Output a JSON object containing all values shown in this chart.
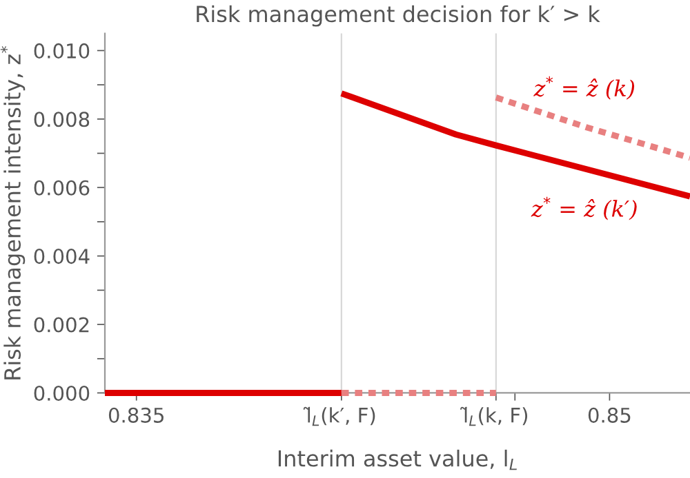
{
  "chart_data": {
    "type": "line",
    "title": "Risk management decision for k′ > k",
    "xlabel": "Interim asset value, l$_{L}$",
    "ylabel": "Risk management intensity, z$^{*}$",
    "xlim": [
      0.834,
      0.85255
    ],
    "ylim": [
      0,
      0.0105
    ],
    "xticks": [
      0.835,
      {
        "value": 0.8415,
        "label": "l̃$_{L}$(k′, F)"
      },
      {
        "value": 0.8464,
        "label": "l̃$_{L}$(k, F)"
      },
      {
        "value": 0.847,
        "label": null
      },
      0.85
    ],
    "yticks": [
      {
        "value": 0,
        "label": "0.000"
      },
      {
        "value": 0.001,
        "label": null
      },
      {
        "value": 0.002,
        "label": "0.002"
      },
      {
        "value": 0.003,
        "label": null
      },
      {
        "value": 0.004,
        "label": "0.004"
      },
      {
        "value": 0.005,
        "label": null
      },
      {
        "value": 0.006,
        "label": "0.006"
      },
      {
        "value": 0.007,
        "label": null
      },
      {
        "value": 0.008,
        "label": "0.008"
      },
      {
        "value": 0.009,
        "label": null
      },
      {
        "value": 0.01,
        "label": "0.010"
      }
    ],
    "grid": false,
    "legend": false,
    "ref_lines": [
      {
        "axis": "x",
        "value": 0.8415,
        "color": "#d8d8d8"
      },
      {
        "axis": "x",
        "value": 0.8464,
        "color": "#d8d8d8"
      }
    ],
    "series": [
      {
        "color": "#dd0000",
        "line_style": "solid",
        "x": [
          0.834,
          0.8415
        ],
        "values": [
          0,
          0
        ]
      },
      {
        "color": "#dd0000",
        "line_style": "solid",
        "x": [
          0.8415,
          0.84513,
          0.8464,
          0.85255
        ],
        "values": [
          0.00875,
          0.00755,
          0.00723,
          0.00574
        ]
      },
      {
        "color": "#e88080",
        "line_style": "dashed",
        "x": [
          0.8415,
          0.8464
        ],
        "values": [
          0,
          0
        ]
      },
      {
        "color": "#e88080",
        "line_style": "dashed",
        "x": [
          0.8464,
          0.8493,
          0.85255
        ],
        "values": [
          0.00863,
          0.00775,
          0.00687
        ]
      }
    ],
    "annotations": [
      "z$^{*}$ = ẑ (k)",
      "z$^{*}$ = ẑ (k′)"
    ]
  }
}
